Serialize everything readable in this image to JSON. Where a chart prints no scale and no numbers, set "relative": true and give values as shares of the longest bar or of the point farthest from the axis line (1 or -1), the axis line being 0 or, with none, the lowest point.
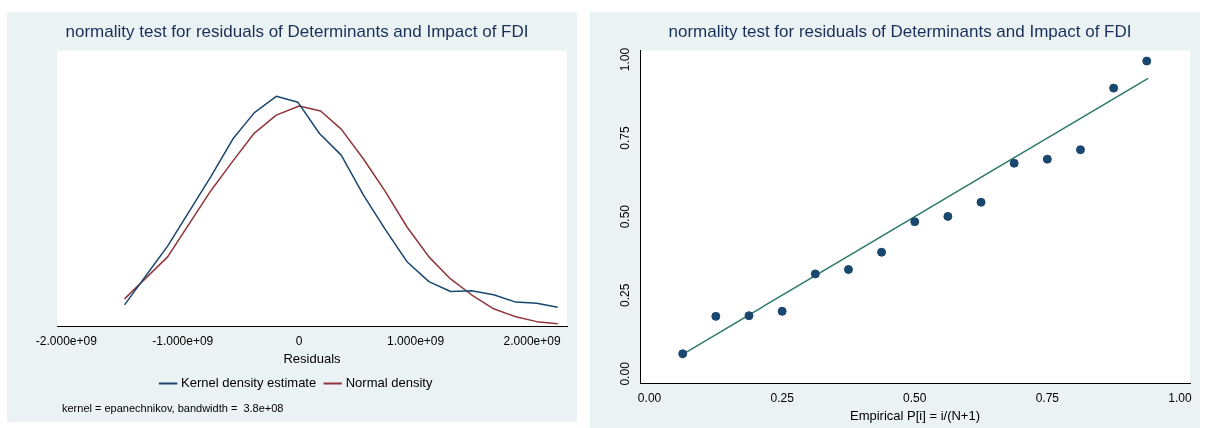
{
  "chart_data": [
    {
      "type": "line",
      "title": "normality test for residuals of Determinants and Impact of FDI",
      "xlabel": "Residuals",
      "relative": true,
      "legend": "bottom",
      "marker": "none",
      "line_style": "solid",
      "xlim": [
        -2080000000,
        2300000000
      ],
      "xticks": [
        {
          "value": -2000000000,
          "label": "-2.000e+09"
        },
        {
          "value": -1000000000,
          "label": "-1.000e+09"
        },
        0,
        {
          "value": 1000000000,
          "label": "1.000e+09"
        },
        {
          "value": 2000000000,
          "label": "2.000e+09"
        }
      ],
      "annotations": [
        "kernel = epanechnikov, bandwidth =  3.8e+08"
      ],
      "series": [
        {
          "name": "Kernel density estimate",
          "color": "#1a476f",
          "x": [
            -1500000000,
            -1130000000,
            -760000000,
            -570000000,
            -385000000,
            -197000000,
            -10000000,
            174000000,
            361000000,
            552000000,
            736000000,
            926000000,
            1114000000,
            1300000000,
            1480000000,
            1670000000,
            1860000000,
            2040000000,
            2220000000
          ],
          "values": [
            0.092,
            0.348,
            0.649,
            0.814,
            0.929,
            1.0,
            0.974,
            0.838,
            0.744,
            0.57,
            0.423,
            0.28,
            0.193,
            0.15,
            0.153,
            0.136,
            0.104,
            0.099,
            0.082
          ]
        },
        {
          "name": "Normal density",
          "color": "#90353b",
          "x": [
            -1500000000,
            -1130000000,
            -760000000,
            -570000000,
            -385000000,
            -197000000,
            0,
            184000000,
            361000000,
            552000000,
            736000000,
            926000000,
            1114000000,
            1300000000,
            1480000000,
            1670000000,
            1860000000,
            2040000000,
            2220000000
          ],
          "values": [
            0.118,
            0.301,
            0.588,
            0.718,
            0.84,
            0.918,
            0.958,
            0.936,
            0.857,
            0.727,
            0.588,
            0.431,
            0.301,
            0.205,
            0.136,
            0.075,
            0.04,
            0.019,
            0.01
          ]
        }
      ]
    },
    {
      "type": "scatter",
      "title": "normality test for residuals of Determinants and Impact of FDI",
      "xlabel": "Empirical P[i] = i/(N+1)",
      "legend": false,
      "marker": "circle",
      "xlim": [
        -0.018,
        1.019
      ],
      "ylim": [
        -0.029,
        1.029
      ],
      "xticks": [
        {
          "value": 0,
          "label": "0.00"
        },
        {
          "value": 0.25,
          "label": "0.25"
        },
        {
          "value": 0.5,
          "label": "0.50"
        },
        {
          "value": 0.75,
          "label": "0.75"
        },
        {
          "value": 1,
          "label": "1.00"
        }
      ],
      "yticks": [
        {
          "value": 0,
          "label": "0.00"
        },
        {
          "value": 0.25,
          "label": "0.25"
        },
        {
          "value": 0.5,
          "label": "0.50"
        },
        {
          "value": 0.75,
          "label": "0.75"
        },
        {
          "value": 1,
          "label": "1.00"
        }
      ],
      "series": [
        {
          "type": "scatter",
          "color": "#1a476f",
          "x": [
            0.0625,
            0.125,
            0.1875,
            0.25,
            0.3125,
            0.375,
            0.4375,
            0.5,
            0.5625,
            0.625,
            0.6875,
            0.75,
            0.8125,
            0.875,
            0.9375
          ],
          "values": [
            0.064,
            0.183,
            0.185,
            0.199,
            0.318,
            0.332,
            0.387,
            0.484,
            0.501,
            0.546,
            0.67,
            0.683,
            0.713,
            0.909,
            0.995
          ]
        },
        {
          "type": "line",
          "color": "#2e7b6c",
          "marker": "none",
          "x": [
            0.06,
            0.94
          ],
          "values": [
            0.06,
            0.94
          ]
        }
      ]
    }
  ]
}
